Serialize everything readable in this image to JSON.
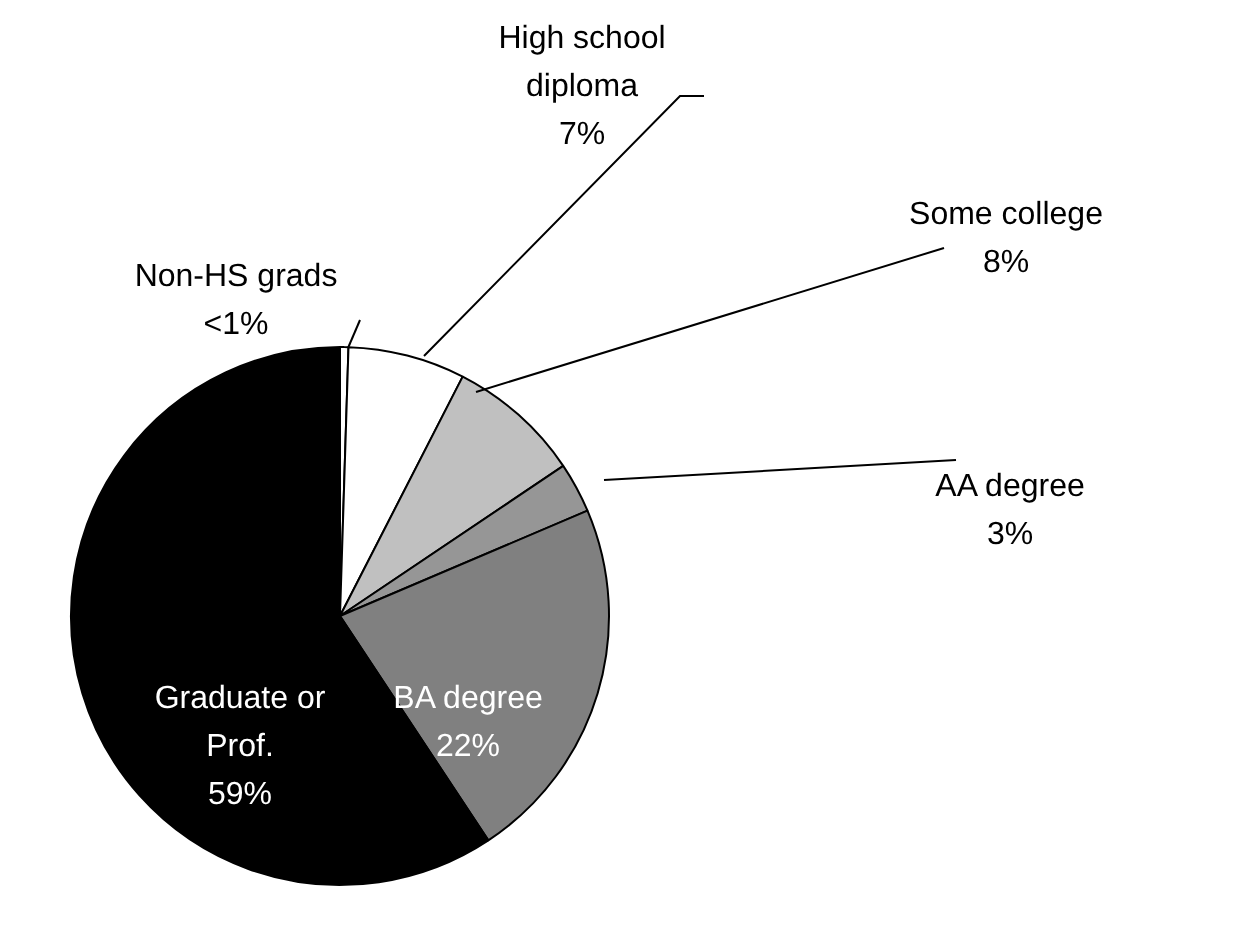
{
  "chart_data": {
    "type": "pie",
    "categories": [
      "Non-HS grads",
      "High school diploma",
      "Some college",
      "AA degree",
      "BA degree",
      "Graduate or Prof."
    ],
    "values": [
      0.5,
      7,
      8,
      3,
      22,
      59
    ],
    "value_labels": [
      "<1%",
      "7%",
      "8%",
      "3%",
      "22%",
      "59%"
    ],
    "colors": [
      "#ffffff",
      "#ffffff",
      "#c0c0c0",
      "#969696",
      "#808080",
      "#000000"
    ],
    "legend": false
  }
}
